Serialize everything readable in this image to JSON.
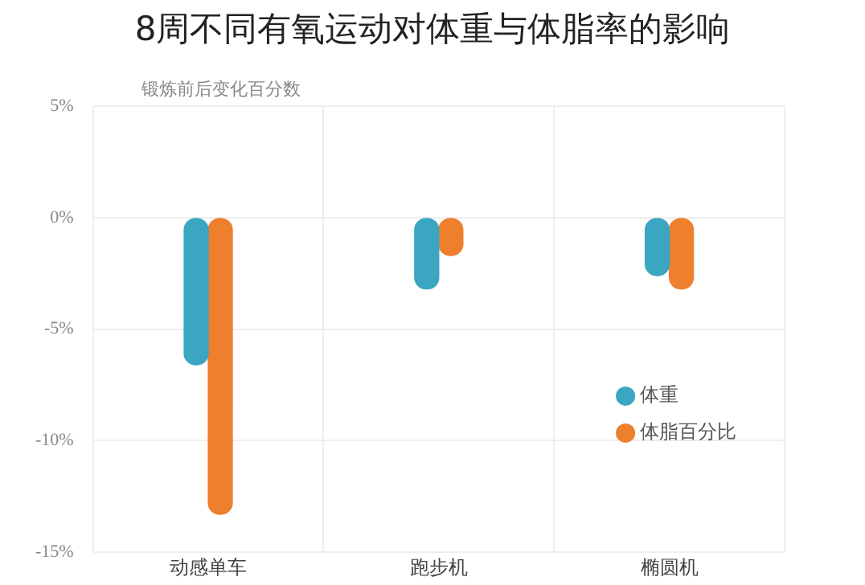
{
  "chart_data": {
    "type": "bar",
    "title": "8周不同有氧运动对体重与体脂率的影响",
    "ylabel": "锻炼前后变化百分数",
    "categories": [
      "动感单车",
      "跑步机",
      "椭圆机"
    ],
    "series": [
      {
        "name": "体重",
        "color": "#3aa6c2",
        "values": [
          -6.6,
          -3.2,
          -2.6
        ]
      },
      {
        "name": "体脂百分比",
        "color": "#ee7f2d",
        "values": [
          -13.3,
          -1.7,
          -3.2
        ]
      }
    ],
    "ylim": [
      -15,
      5
    ],
    "yticks": [
      {
        "value": -15,
        "label": "-15%"
      },
      {
        "value": -10,
        "label": "-10%"
      },
      {
        "value": -5,
        "label": "-5%"
      },
      {
        "value": 0,
        "label": "0%"
      },
      {
        "value": 5,
        "label": "5%"
      }
    ],
    "grid": true,
    "legend": "bottom right"
  }
}
